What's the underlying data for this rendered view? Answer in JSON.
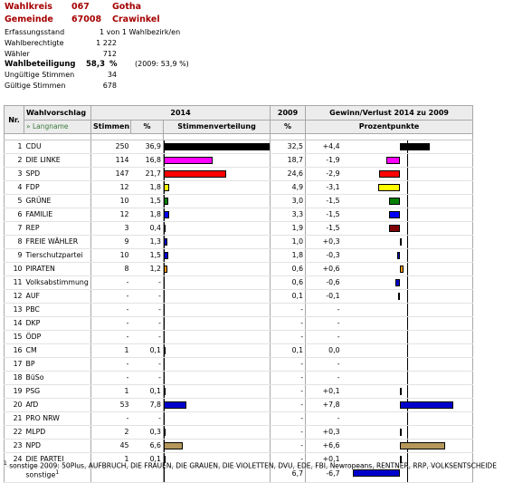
{
  "header": {
    "wahlkreis_label": "Wahlkreis",
    "wahlkreis_nr": "067",
    "wahlkreis_name": "Gotha",
    "gemeinde_label": "Gemeinde",
    "gemeinde_nr": "67008",
    "gemeinde_name": "Crawinkel"
  },
  "info": {
    "erfassung_label": "Erfassungsstand",
    "erfassung_value": "1 von 1 Wahlbezirk/en",
    "berechtigte_label": "Wahlberechtigte",
    "berechtigte_value": "1 222",
    "waehler_label": "Wähler",
    "waehler_value": "712",
    "beteiligung_label": "Wahlbeteiligung",
    "beteiligung_value": "58,3",
    "beteiligung_unit": "%",
    "beteiligung_prev": "(2009: 53,9  %)",
    "ungueltig_label": "Ungültige Stimmen",
    "ungueltig_value": "34",
    "gueltig_label": "Gültige Stimmen",
    "gueltig_value": "678"
  },
  "table": {
    "h_nr": "Nr.",
    "h_wahlvorschlag": "Wahlvorschlag",
    "h_langname": "» Langname",
    "h_2014": "2014",
    "h_2009": "2009",
    "h_gv": "Gewinn/Verlust 2014 zu 2009",
    "h_stimmen": "Stimmen",
    "h_pct": "%",
    "h_verteilung": "Stimmenverteilung",
    "h_pct09": "%",
    "h_pp": "Prozentpunkte"
  },
  "colors": {
    "CDU": "#000000",
    "DIE LINKE": "#ff00ff",
    "SPD": "#ff0000",
    "FDP": "#ffff00",
    "GRÜNE": "#008000",
    "FAMILIE": "#0000ff",
    "REP": "#800000",
    "FREIE WÄHLER": "#0000cc",
    "Tierschutzpartei": "#0000cc",
    "PIRATEN": "#ff9900",
    "Volksabstimmung": "#0000cc",
    "AUF": "#0000cc",
    "CM": "#0000cc",
    "PSG": "#0000cc",
    "AfD": "#0000cc",
    "MLPD": "#0000cc",
    "NPD": "#b5975a",
    "DIE PARTEI": "#0000cc",
    "sonstige": "#0000cc"
  },
  "rows": [
    {
      "nr": "1",
      "name": "CDU",
      "stimmen": "250",
      "pct": "36,9",
      "pct09": "32,5",
      "diff": "+4,4",
      "v": 36.9,
      "d": 4.4
    },
    {
      "nr": "2",
      "name": "DIE LINKE",
      "stimmen": "114",
      "pct": "16,8",
      "pct09": "18,7",
      "diff": "-1,9",
      "v": 16.8,
      "d": -1.9
    },
    {
      "nr": "3",
      "name": "SPD",
      "stimmen": "147",
      "pct": "21,7",
      "pct09": "24,6",
      "diff": "-2,9",
      "v": 21.7,
      "d": -2.9
    },
    {
      "nr": "4",
      "name": "FDP",
      "stimmen": "12",
      "pct": "1,8",
      "pct09": "4,9",
      "diff": "-3,1",
      "v": 1.8,
      "d": -3.1
    },
    {
      "nr": "5",
      "name": "GRÜNE",
      "stimmen": "10",
      "pct": "1,5",
      "pct09": "3,0",
      "diff": "-1,5",
      "v": 1.5,
      "d": -1.5
    },
    {
      "nr": "6",
      "name": "FAMILIE",
      "stimmen": "12",
      "pct": "1,8",
      "pct09": "3,3",
      "diff": "-1,5",
      "v": 1.8,
      "d": -1.5
    },
    {
      "nr": "7",
      "name": "REP",
      "stimmen": "3",
      "pct": "0,4",
      "pct09": "1,9",
      "diff": "-1,5",
      "v": 0.4,
      "d": -1.5
    },
    {
      "nr": "8",
      "name": "FREIE WÄHLER",
      "stimmen": "9",
      "pct": "1,3",
      "pct09": "1,0",
      "diff": "+0,3",
      "v": 1.3,
      "d": 0.3
    },
    {
      "nr": "9",
      "name": "Tierschutzpartei",
      "stimmen": "10",
      "pct": "1,5",
      "pct09": "1,8",
      "diff": "-0,3",
      "v": 1.5,
      "d": -0.3
    },
    {
      "nr": "10",
      "name": "PIRATEN",
      "stimmen": "8",
      "pct": "1,2",
      "pct09": "0,6",
      "diff": "+0,6",
      "v": 1.2,
      "d": 0.6
    },
    {
      "nr": "11",
      "name": "Volksabstimmung",
      "stimmen": "-",
      "pct": "-",
      "pct09": "0,6",
      "diff": "-0,6",
      "v": 0,
      "d": -0.6
    },
    {
      "nr": "12",
      "name": "AUF",
      "stimmen": "-",
      "pct": "-",
      "pct09": "0,1",
      "diff": "-0,1",
      "v": 0,
      "d": -0.1
    },
    {
      "nr": "13",
      "name": "PBC",
      "stimmen": "-",
      "pct": "-",
      "pct09": "-",
      "diff": "-",
      "v": 0,
      "d": 0
    },
    {
      "nr": "14",
      "name": "DKP",
      "stimmen": "-",
      "pct": "-",
      "pct09": "-",
      "diff": "-",
      "v": 0,
      "d": 0
    },
    {
      "nr": "15",
      "name": "ÖDP",
      "stimmen": "-",
      "pct": "-",
      "pct09": "-",
      "diff": "-",
      "v": 0,
      "d": 0
    },
    {
      "nr": "16",
      "name": "CM",
      "stimmen": "1",
      "pct": "0,1",
      "pct09": "0,1",
      "diff": "0,0",
      "v": 0.1,
      "d": 0
    },
    {
      "nr": "17",
      "name": "BP",
      "stimmen": "-",
      "pct": "-",
      "pct09": "-",
      "diff": "-",
      "v": 0,
      "d": 0
    },
    {
      "nr": "18",
      "name": "BüSo",
      "stimmen": "-",
      "pct": "-",
      "pct09": "-",
      "diff": "-",
      "v": 0,
      "d": 0
    },
    {
      "nr": "19",
      "name": "PSG",
      "stimmen": "1",
      "pct": "0,1",
      "pct09": "-",
      "diff": "+0,1",
      "v": 0.1,
      "d": 0.1
    },
    {
      "nr": "20",
      "name": "AfD",
      "stimmen": "53",
      "pct": "7,8",
      "pct09": "-",
      "diff": "+7,8",
      "v": 7.8,
      "d": 7.8
    },
    {
      "nr": "21",
      "name": "PRO NRW",
      "stimmen": "-",
      "pct": "-",
      "pct09": "-",
      "diff": "-",
      "v": 0,
      "d": 0
    },
    {
      "nr": "22",
      "name": "MLPD",
      "stimmen": "2",
      "pct": "0,3",
      "pct09": "-",
      "diff": "+0,3",
      "v": 0.3,
      "d": 0.3
    },
    {
      "nr": "23",
      "name": "NPD",
      "stimmen": "45",
      "pct": "6,6",
      "pct09": "-",
      "diff": "+6,6",
      "v": 6.6,
      "d": 6.6
    },
    {
      "nr": "24",
      "name": "DIE PARTEI",
      "stimmen": "1",
      "pct": "0,1",
      "pct09": "-",
      "diff": "+0,1",
      "v": 0.1,
      "d": 0.1
    }
  ],
  "sonstige": {
    "name": "sonstige",
    "sup": "1",
    "pct09": "6,7",
    "diff": "-6,7",
    "d": -6.7
  },
  "footnote": {
    "sup": "1",
    "text": " sonstige 2009: 50Plus, AUFBRUCH, DIE FRAUEN, DIE GRAUEN, DIE VIOLETTEN, DVU, EDE, FBI, Newropeans, RENTNER, RRP, VOLKSENTSCHEIDE"
  }
}
